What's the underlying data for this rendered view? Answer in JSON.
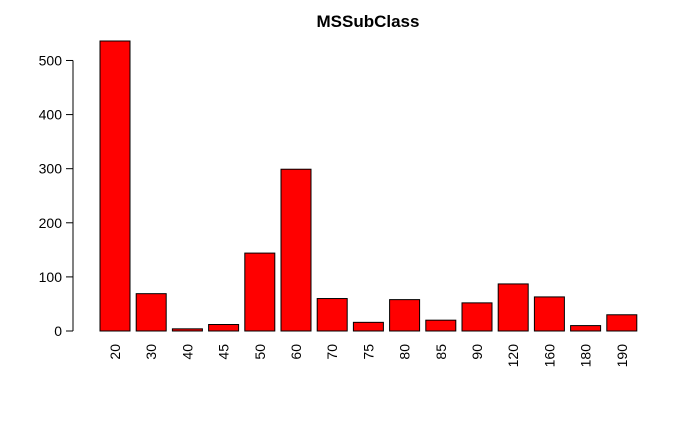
{
  "chart_data": {
    "type": "bar",
    "title": "MSSubClass",
    "xlabel": "",
    "ylabel": "",
    "categories": [
      "20",
      "30",
      "40",
      "45",
      "50",
      "60",
      "70",
      "75",
      "80",
      "85",
      "90",
      "120",
      "160",
      "180",
      "190"
    ],
    "values": [
      536,
      69,
      4,
      12,
      144,
      299,
      60,
      16,
      58,
      20,
      52,
      87,
      63,
      10,
      30
    ],
    "ylim": [
      0,
      536
    ],
    "yticks": [
      0,
      100,
      200,
      300,
      400,
      500
    ],
    "bar_color": "#ff0000",
    "grid": false,
    "legend": "none"
  }
}
